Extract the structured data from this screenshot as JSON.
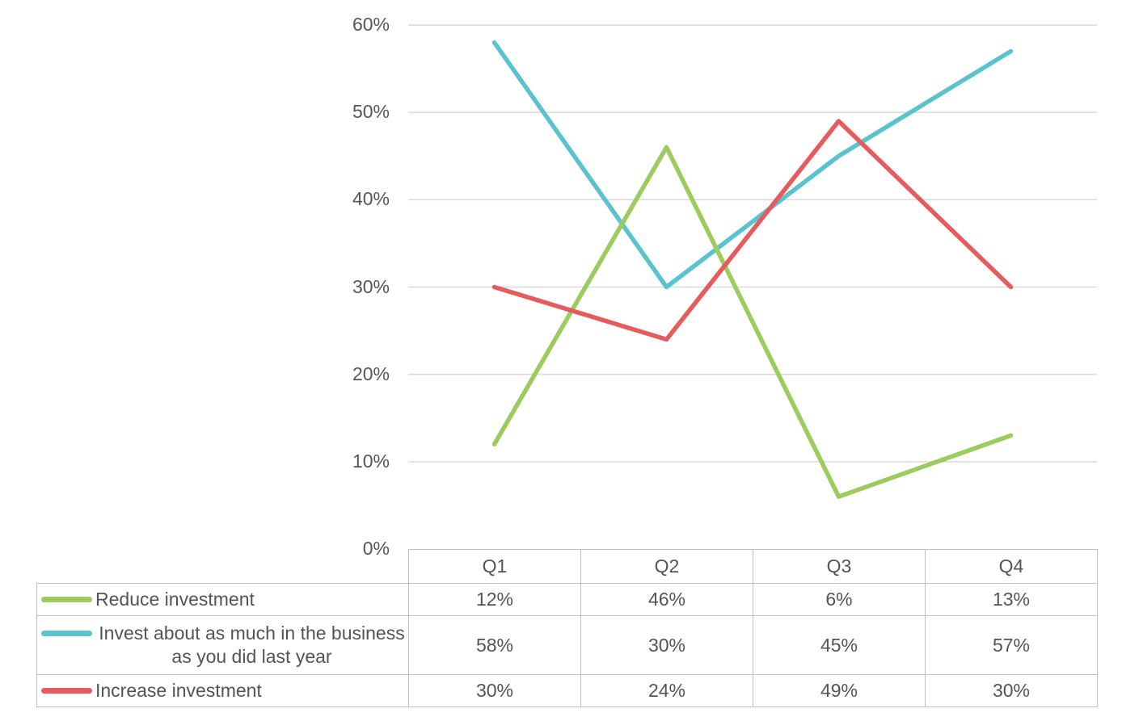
{
  "chart_data": {
    "type": "line",
    "title": "",
    "xlabel": "",
    "ylabel": "",
    "categories": [
      "Q1",
      "Q2",
      "Q3",
      "Q4"
    ],
    "series": [
      {
        "name": "Reduce investment",
        "name_lines": [
          "Reduce investment"
        ],
        "values": [
          12,
          46,
          6,
          13
        ],
        "color": "#9DCB5E"
      },
      {
        "name": "Invest about as much in the business as you did last year",
        "name_lines": [
          "Invest about as much in the business",
          "as you did last year"
        ],
        "values": [
          58,
          30,
          45,
          57
        ],
        "color": "#5BC3CE"
      },
      {
        "name": "Increase investment",
        "name_lines": [
          "Increase investment"
        ],
        "values": [
          30,
          24,
          49,
          30
        ],
        "color": "#E65B5D"
      }
    ],
    "ylim": [
      0,
      60
    ],
    "y_tick_labels": [
      "0%",
      "10%",
      "20%",
      "30%",
      "40%",
      "50%",
      "60%"
    ],
    "value_suffix": "%",
    "grid": "horizontal",
    "gridline_color": "#d9d9d9",
    "table_border_color": "#bfbfbf",
    "legend_position": "data-table-left",
    "draw_order": [
      1,
      0,
      2
    ]
  }
}
